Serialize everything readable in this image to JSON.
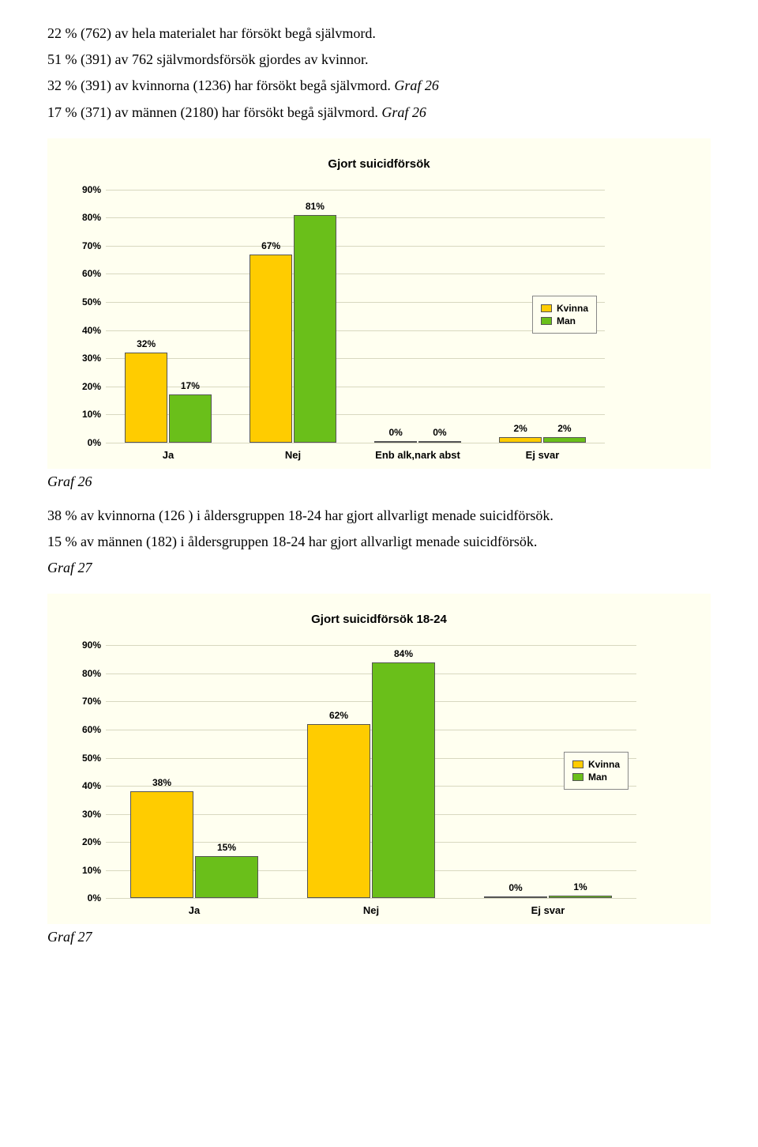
{
  "paragraphs": {
    "p1": "22 % (762) av hela materialet har försökt begå självmord.",
    "p2": "51 % (391) av 762 självmordsförsök gjordes av kvinnor.",
    "p3_a": "32 % (391) av kvinnorna (1236) har försökt begå självmord. ",
    "p3_b": "Graf 26",
    "p4_a": "17 % (371) av männen (2180) har försökt begå självmord. ",
    "p4_b": "Graf 26",
    "mid_a": "38 %  av kvinnorna  (126 ) i åldersgruppen 18-24 har gjort allvarligt menade suicidförsök.",
    "mid_b": "15 %  av männen  (182) i åldersgruppen 18-24 har gjort allvarligt menade suicidförsök.",
    "mid_c": "Graf 27"
  },
  "graf26_label": "Graf 26",
  "graf27_label": "Graf 27",
  "legend": {
    "kvinna": "Kvinna",
    "man": "Man"
  },
  "colors": {
    "kvinna": "#ffcc00",
    "man": "#6abf1a",
    "chart_bg": "#fffff0",
    "grid": "#d8d8c0"
  },
  "chart1": {
    "title": "Gjort suicidförsök",
    "ymax": 90,
    "ystep": 10,
    "categories": [
      "Ja",
      "Nej",
      "Enb alk,nark abst",
      "Ej svar"
    ],
    "kvinna": [
      32,
      67,
      0,
      2
    ],
    "man": [
      17,
      81,
      0,
      2
    ],
    "kvinna_lbl": [
      "32%",
      "67%",
      "0%",
      "2%"
    ],
    "man_lbl": [
      "17%",
      "81%",
      "0%",
      "2%"
    ],
    "legend_top_pct": 42
  },
  "chart2": {
    "title": "Gjort suicidförsök 18-24",
    "ymax": 90,
    "ystep": 10,
    "categories": [
      "Ja",
      "Nej",
      "Ej svar"
    ],
    "kvinna": [
      38,
      62,
      0
    ],
    "man": [
      15,
      84,
      1
    ],
    "kvinna_lbl": [
      "38%",
      "62%",
      "0%"
    ],
    "man_lbl": [
      "15%",
      "84%",
      "1%"
    ],
    "legend_top_pct": 42
  }
}
